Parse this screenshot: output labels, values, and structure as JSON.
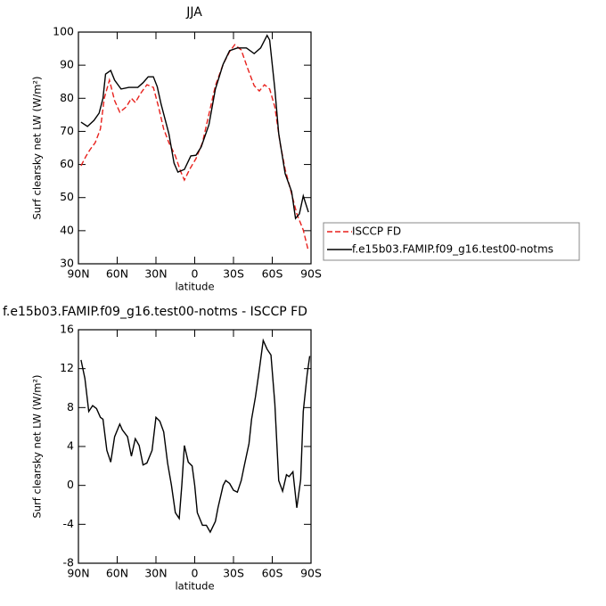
{
  "chart_data": [
    {
      "type": "line",
      "title": "JJA",
      "xlabel": "latitude",
      "ylabel": "Surf clearsky net LW (W/m²)",
      "xlim": [
        90,
        -90
      ],
      "xticks": [
        {
          "value": 90,
          "label": "90N"
        },
        {
          "value": 60,
          "label": "60N"
        },
        {
          "value": 30,
          "label": "30N"
        },
        0,
        {
          "value": -30,
          "label": "30S"
        },
        {
          "value": -60,
          "label": "60S"
        },
        {
          "value": -90,
          "label": "90S"
        }
      ],
      "ylim": [
        30,
        100
      ],
      "yticks": [
        30,
        40,
        50,
        60,
        70,
        80,
        90,
        100
      ],
      "legend": "right",
      "series": [
        {
          "name": "ISCCP FD",
          "color": "#e8201c",
          "dash": true,
          "x": [
            88,
            84,
            81,
            77,
            73,
            70,
            66,
            62,
            58,
            53,
            49,
            46,
            42,
            37,
            32,
            28,
            24,
            20,
            15,
            11,
            8,
            4,
            -1,
            -6,
            -11,
            -16,
            -22,
            -27,
            -31,
            -36,
            -41,
            -46,
            -50,
            -54,
            -58,
            -62,
            -66,
            -70,
            -74,
            -79,
            -84,
            -88
          ],
          "values": [
            59.6,
            62.6,
            64.5,
            66.6,
            70.7,
            80,
            85.5,
            79.3,
            75.8,
            77.4,
            80,
            78.7,
            81.4,
            84.1,
            83.3,
            77.4,
            70.7,
            66.6,
            62.6,
            58,
            55.3,
            58.5,
            61.8,
            66.6,
            75.2,
            83.8,
            90.3,
            94.1,
            96.2,
            94.6,
            89,
            83.8,
            82.2,
            84.1,
            82.8,
            77.4,
            66.6,
            58.5,
            52.6,
            45.1,
            40.2,
            33.8
          ]
        },
        {
          "name": "f.e15b03.FAMIP.f09_g16.test00-notms",
          "color": "#000000",
          "dash": false,
          "x": [
            88,
            83,
            78,
            74,
            71,
            69,
            65,
            62,
            57,
            51,
            44,
            40,
            36,
            32,
            29,
            26,
            20,
            16,
            13,
            8,
            3,
            -1,
            -5,
            -11,
            -16,
            -22,
            -27,
            -33,
            -40,
            -46,
            -51,
            -56,
            -58,
            -62,
            -65,
            -70,
            -75,
            -78,
            -81,
            -84,
            -88
          ],
          "values": [
            72.8,
            71.5,
            73.3,
            75.5,
            80,
            87.3,
            88.4,
            85.5,
            82.8,
            83.3,
            83.3,
            84.7,
            86.5,
            86.5,
            83.5,
            78.2,
            69.3,
            60.4,
            57.7,
            58.5,
            62.6,
            62.8,
            65.3,
            72,
            82.8,
            90.3,
            94.4,
            95.2,
            95.2,
            93.5,
            95.2,
            99,
            97.6,
            82.8,
            69.3,
            57.2,
            51.8,
            43.7,
            45.1,
            50.5,
            45.6
          ]
        }
      ]
    },
    {
      "type": "line",
      "title": "f.e15b03.FAMIP.f09_g16.test00-notms - ISCCP FD",
      "xlabel": "latitude",
      "ylabel": "Surf clearsky net LW (W/m²)",
      "xlim": [
        90,
        -90
      ],
      "xticks": [
        {
          "value": 90,
          "label": "90N"
        },
        {
          "value": 60,
          "label": "60N"
        },
        {
          "value": 30,
          "label": "30N"
        },
        0,
        {
          "value": -30,
          "label": "30S"
        },
        {
          "value": -60,
          "label": "60S"
        },
        {
          "value": -90,
          "label": "90S"
        }
      ],
      "ylim": [
        -8,
        16
      ],
      "yticks": [
        -8,
        -4,
        0,
        4,
        8,
        12,
        16
      ],
      "series": [
        {
          "color": "#000000",
          "dash": false,
          "x": [
            88,
            85,
            82,
            79,
            76,
            73,
            71,
            68,
            65,
            62,
            58,
            56,
            52,
            49,
            46,
            43,
            40,
            37,
            33,
            30,
            27,
            24,
            21,
            18,
            15,
            12,
            10,
            8,
            5,
            2,
            0,
            -2,
            -6,
            -9,
            -12,
            -16,
            -18,
            -22,
            -24,
            -27,
            -30,
            -33,
            -36,
            -38,
            -42,
            -44,
            -47,
            -50,
            -53,
            -56,
            -59,
            -62,
            -65,
            -68,
            -71,
            -73,
            -76,
            -79,
            -82,
            -84,
            -87,
            -89
          ],
          "values": [
            12.9,
            11,
            7.6,
            8.2,
            7.9,
            7,
            6.8,
            3.6,
            2.4,
            5,
            6.3,
            5.7,
            5,
            3,
            4.8,
            4.1,
            2.1,
            2.3,
            3.6,
            7,
            6.6,
            5.5,
            2.3,
            0,
            -2.8,
            -3.4,
            0,
            4.1,
            2.4,
            2,
            0,
            -2.8,
            -4.1,
            -4.1,
            -4.8,
            -3.7,
            -2.3,
            0,
            0.5,
            0.2,
            -0.5,
            -0.7,
            0.5,
            1.8,
            4.3,
            6.8,
            9.1,
            11.9,
            14.9,
            14,
            13.4,
            8.4,
            0.5,
            -0.6,
            1.1,
            0.9,
            1.4,
            -2.3,
            0.6,
            7.6,
            11.4,
            13.3
          ]
        }
      ]
    }
  ]
}
